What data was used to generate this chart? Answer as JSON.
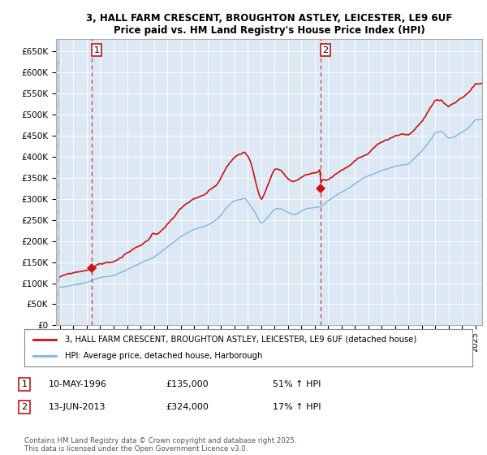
{
  "title1": "3, HALL FARM CRESCENT, BROUGHTON ASTLEY, LEICESTER, LE9 6UF",
  "title2": "Price paid vs. HM Land Registry's House Price Index (HPI)",
  "ylim": [
    0,
    680000
  ],
  "yticks": [
    0,
    50000,
    100000,
    150000,
    200000,
    250000,
    300000,
    350000,
    400000,
    450000,
    500000,
    550000,
    600000,
    650000
  ],
  "ytick_labels": [
    "£0",
    "£50K",
    "£100K",
    "£150K",
    "£200K",
    "£250K",
    "£300K",
    "£350K",
    "£400K",
    "£450K",
    "£500K",
    "£550K",
    "£600K",
    "£650K"
  ],
  "sale1_year": 1996.36,
  "sale1_price": 135000,
  "sale2_year": 2013.44,
  "sale2_price": 324000,
  "hpi_color": "#7eb6e0",
  "price_color": "#cc1111",
  "vline_color": "#cc1111",
  "chart_bg": "#dce9f5",
  "hatch_bg": "#c8d8e8",
  "grid_color": "#ffffff",
  "legend_line1": "3, HALL FARM CRESCENT, BROUGHTON ASTLEY, LEICESTER, LE9 6UF (detached house)",
  "legend_line2": "HPI: Average price, detached house, Harborough",
  "note1_label": "1",
  "note1_date": "10-MAY-1996",
  "note1_price": "£135,000",
  "note1_hpi": "51% ↑ HPI",
  "note2_label": "2",
  "note2_date": "13-JUN-2013",
  "note2_price": "£324,000",
  "note2_hpi": "17% ↑ HPI",
  "footer": "Contains HM Land Registry data © Crown copyright and database right 2025.\nThis data is licensed under the Open Government Licence v3.0.",
  "xlim_start": 1993.7,
  "xlim_end": 2025.5
}
